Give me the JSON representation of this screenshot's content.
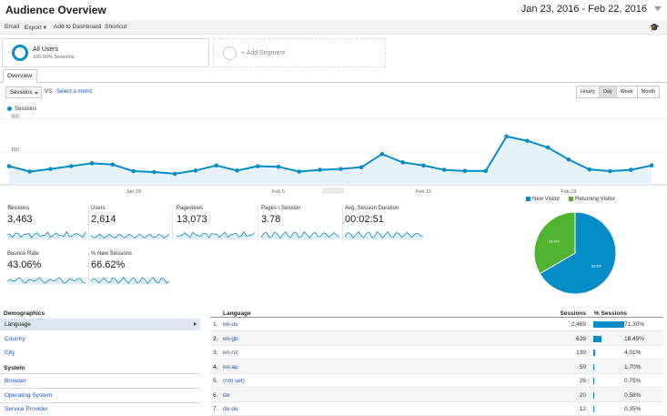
{
  "header": {
    "title": "Audience Overview",
    "date_range": "Jan 23, 2016 - Feb 22, 2016"
  },
  "toolbar": {
    "items": [
      "Email",
      "Export",
      "Add to Dashboard",
      "Shortcut"
    ],
    "export_caret": "▾"
  },
  "segments": {
    "all_users_title": "All Users",
    "all_users_sub": "100.00% Sessions",
    "add_segment": "+ Add Segment"
  },
  "tabs": {
    "overview": "Overview"
  },
  "controls": {
    "metric": "Sessions",
    "vs": "VS.",
    "select_metric": "Select a metric",
    "granularity": [
      "Hourly",
      "Day",
      "Week",
      "Month"
    ],
    "active_granularity": "Day"
  },
  "chart_data": {
    "type": "area",
    "title": "",
    "series": [
      {
        "name": "Sessions",
        "values": [
          85,
          60,
          72,
          85,
          98,
          92,
          62,
          58,
          50,
          65,
          88,
          65,
          85,
          82,
          60,
          68,
          72,
          80,
          140,
          102,
          88,
          68,
          63,
          63,
          220,
          200,
          170,
          115,
          70,
          62,
          68,
          88
        ]
      }
    ],
    "x_tick_labels": [
      "Jan 29",
      "Feb 5",
      "Feb 12",
      "Feb 19"
    ],
    "x_tick_indices": [
      6,
      13,
      20,
      27
    ],
    "y_tick_labels": [
      "300",
      "150"
    ],
    "y_ticks": [
      300,
      150
    ],
    "ylim": [
      0,
      315
    ],
    "color": "#058dc7",
    "legend": "Sessions"
  },
  "scorecards": [
    {
      "label": "Sessions",
      "value": "3,463"
    },
    {
      "label": "Users",
      "value": "2,614"
    },
    {
      "label": "Pageviews",
      "value": "13,073"
    },
    {
      "label": "Pages / Session",
      "value": "3.78"
    },
    {
      "label": "Avg. Session Duration",
      "value": "00:02:51"
    },
    {
      "label": "Bounce Rate",
      "value": "43.06%"
    },
    {
      "label": "% New Sessions",
      "value": "66.62%"
    }
  ],
  "pie": {
    "legend": [
      {
        "label": "New Visitor",
        "color": "#058dc7"
      },
      {
        "label": "Returning Visitor",
        "color": "#50b432"
      }
    ],
    "values": [
      66.6,
      33.4
    ],
    "labels": [
      "66.6%",
      "33.4%"
    ]
  },
  "demographics": {
    "heading": "Demographics",
    "items": [
      "Language",
      "Country",
      "City"
    ],
    "active": "Language",
    "system_heading": "System",
    "system_items": [
      "Browser",
      "Operating System",
      "Service Provider"
    ]
  },
  "language_table": {
    "headers": {
      "language": "Language",
      "sessions": "Sessions",
      "pct_sessions": "% Sessions"
    },
    "rows": [
      {
        "idx": "1.",
        "lang": "en-us",
        "sessions": "2,469",
        "pct": "71.30%",
        "share": 71.3
      },
      {
        "idx": "2.",
        "lang": "en-gb",
        "sessions": "639",
        "pct": "18.45%",
        "share": 18.45
      },
      {
        "idx": "3.",
        "lang": "en-nz",
        "sessions": "139",
        "pct": "4.01%",
        "share": 4.01
      },
      {
        "idx": "4.",
        "lang": "en-au",
        "sessions": "59",
        "pct": "1.70%",
        "share": 1.7
      },
      {
        "idx": "5.",
        "lang": "(not set)",
        "sessions": "26",
        "pct": "0.75%",
        "share": 0.75
      },
      {
        "idx": "6.",
        "lang": "de",
        "sessions": "20",
        "pct": "0.58%",
        "share": 0.58
      },
      {
        "idx": "7.",
        "lang": "de-de",
        "sessions": "12",
        "pct": "0.35%",
        "share": 0.35
      }
    ]
  }
}
